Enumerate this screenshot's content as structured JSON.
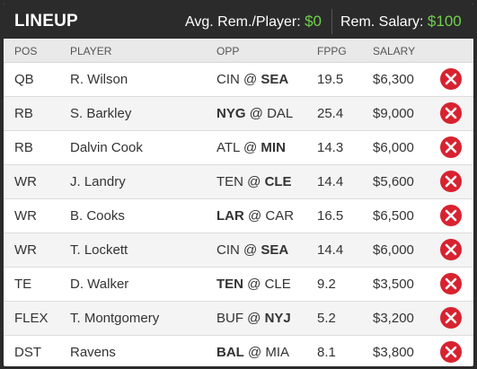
{
  "header": {
    "title": "LINEUP",
    "avg_label": "Avg. Rem./Player:",
    "avg_value": "$0",
    "rem_label": "Rem. Salary:",
    "rem_value": "$100"
  },
  "columns": [
    "POS",
    "PLAYER",
    "OPP",
    "FPPG",
    "SALARY"
  ],
  "accent_green": "#6fd14a",
  "remove_color": "#d8222f",
  "players": [
    {
      "pos": "QB",
      "player": "R. Wilson",
      "opp_away": "CIN",
      "opp_home": "SEA",
      "bold": "home",
      "fppg": "19.5",
      "salary": "$6,300"
    },
    {
      "pos": "RB",
      "player": "S. Barkley",
      "opp_away": "NYG",
      "opp_home": "DAL",
      "bold": "away",
      "fppg": "25.4",
      "salary": "$9,000"
    },
    {
      "pos": "RB",
      "player": "Dalvin Cook",
      "opp_away": "ATL",
      "opp_home": "MIN",
      "bold": "home",
      "fppg": "14.3",
      "salary": "$6,000"
    },
    {
      "pos": "WR",
      "player": "J. Landry",
      "opp_away": "TEN",
      "opp_home": "CLE",
      "bold": "home",
      "fppg": "14.4",
      "salary": "$5,600"
    },
    {
      "pos": "WR",
      "player": "B. Cooks",
      "opp_away": "LAR",
      "opp_home": "CAR",
      "bold": "away",
      "fppg": "16.5",
      "salary": "$6,500"
    },
    {
      "pos": "WR",
      "player": "T. Lockett",
      "opp_away": "CIN",
      "opp_home": "SEA",
      "bold": "home",
      "fppg": "14.4",
      "salary": "$6,000"
    },
    {
      "pos": "TE",
      "player": "D. Walker",
      "opp_away": "TEN",
      "opp_home": "CLE",
      "bold": "away",
      "fppg": "9.2",
      "salary": "$3,500"
    },
    {
      "pos": "FLEX",
      "player": "T. Montgomery",
      "opp_away": "BUF",
      "opp_home": "NYJ",
      "bold": "home",
      "fppg": "5.2",
      "salary": "$3,200"
    },
    {
      "pos": "DST",
      "player": "Ravens",
      "opp_away": "BAL",
      "opp_home": "MIA",
      "bold": "away",
      "fppg": "8.1",
      "salary": "$3,800"
    }
  ]
}
